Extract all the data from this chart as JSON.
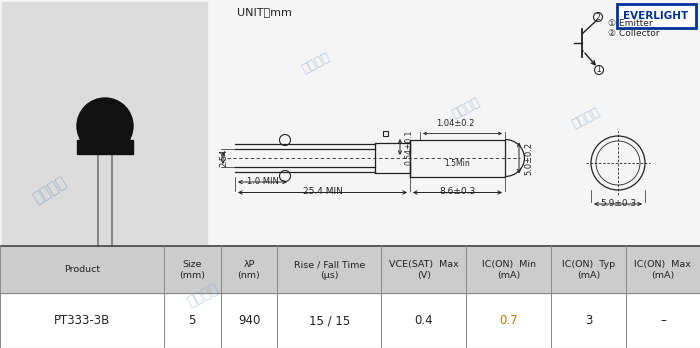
{
  "bg_color": "#e8e8e8",
  "white_bg": "#ffffff",
  "draw_bg": "#f5f5f5",
  "table_header_bg": "#cccccc",
  "table_border": "#999999",
  "dim_color": "#222222",
  "watermark_color": "#7799bb",
  "everlight_border": "#003399",
  "everlight_text": "#003399",
  "title": "UNIT：mm",
  "watermark": "超毅电子",
  "data_row": [
    "PT333-3B",
    "5",
    "940",
    "15 / 15",
    "0.4",
    "0.7",
    "3",
    "–"
  ],
  "dim_25_4": "25.4 MIN",
  "dim_8_6": "8.6±0.3",
  "dim_5_9": "5.9±0.3",
  "dim_5_0": "5.0±0.2",
  "dim_1_0": "1.0 MIN",
  "dim_2_54": "2.54",
  "dim_0_54": "0.54±0.1",
  "dim_1_04": "1.04±0.2",
  "dim_1_5": "1.5Min"
}
